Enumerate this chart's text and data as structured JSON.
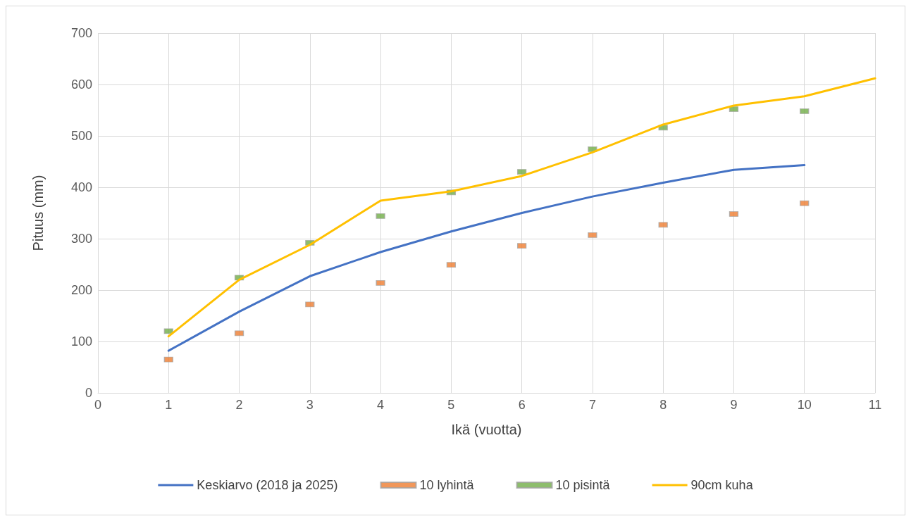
{
  "chart_data": {
    "type": "line",
    "xlabel": "Ikä (vuotta)",
    "ylabel": "Pituus (mm)",
    "xlim": [
      0,
      11
    ],
    "xticks": [
      0,
      1,
      2,
      3,
      4,
      5,
      6,
      7,
      8,
      9,
      10,
      11
    ],
    "ylim": [
      0,
      700
    ],
    "yticks": [
      0,
      100,
      200,
      300,
      400,
      500,
      600,
      700
    ],
    "grid": true,
    "legend": "bottom",
    "series": [
      {
        "name": "Keskiarvo (2018 ja 2025)",
        "color": "#4472c4",
        "x": [
          1,
          2,
          3,
          4,
          5,
          6,
          7,
          8,
          9,
          10
        ],
        "values": [
          82,
          158,
          227,
          274,
          314,
          350,
          382,
          409,
          434,
          443
        ]
      },
      {
        "name": "10 lyhintä",
        "type": "scatter",
        "color": "#ed7d31",
        "x": [
          1,
          2,
          3,
          4,
          5,
          6,
          7,
          8,
          9,
          10
        ],
        "values": [
          65,
          116,
          172,
          214,
          249,
          286,
          307,
          327,
          348,
          369
        ]
      },
      {
        "name": "10 pisintä",
        "type": "scatter",
        "color": "#70ad47",
        "x": [
          1,
          2,
          3,
          4,
          5,
          6,
          7,
          8,
          9,
          10
        ],
        "values": [
          120,
          224,
          292,
          344,
          390,
          430,
          474,
          516,
          552,
          548
        ]
      },
      {
        "name": "90cm kuha",
        "color": "#ffc000",
        "x": [
          1,
          2,
          3,
          4,
          5,
          6,
          7,
          8,
          9,
          10,
          11
        ],
        "values": [
          110,
          220,
          288,
          374,
          392,
          422,
          468,
          522,
          559,
          577,
          612
        ]
      }
    ]
  }
}
